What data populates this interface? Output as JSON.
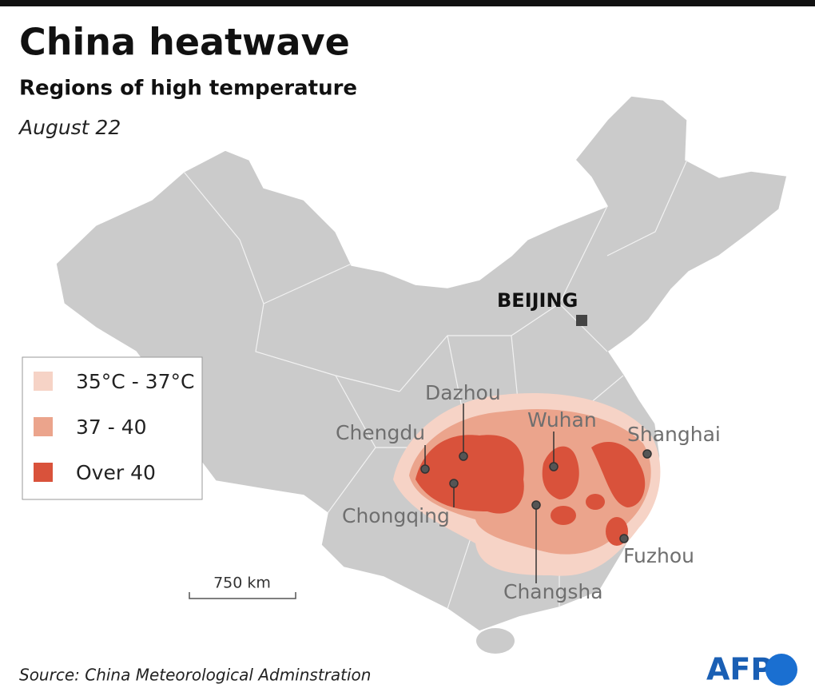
{
  "header": {
    "title": "China heatwave",
    "subtitle": "Regions of high temperature",
    "date": "August 22"
  },
  "legend": {
    "items": [
      {
        "label": "35°C - 37°C",
        "color": "#f6d3c6"
      },
      {
        "label": "37 - 40",
        "color": "#eba48c"
      },
      {
        "label": "Over 40",
        "color": "#d9523b"
      }
    ]
  },
  "capital": {
    "label": "BEIJING"
  },
  "cities": [
    {
      "label": "Dazhou"
    },
    {
      "label": "Chengdu"
    },
    {
      "label": "Wuhan"
    },
    {
      "label": "Shanghai"
    },
    {
      "label": "Chongqing"
    },
    {
      "label": "Fuzhou"
    },
    {
      "label": "Changsha"
    }
  ],
  "scale": {
    "label": "750 km"
  },
  "source": "Source: China Meteorological Adminstration",
  "logo": "AFP"
}
